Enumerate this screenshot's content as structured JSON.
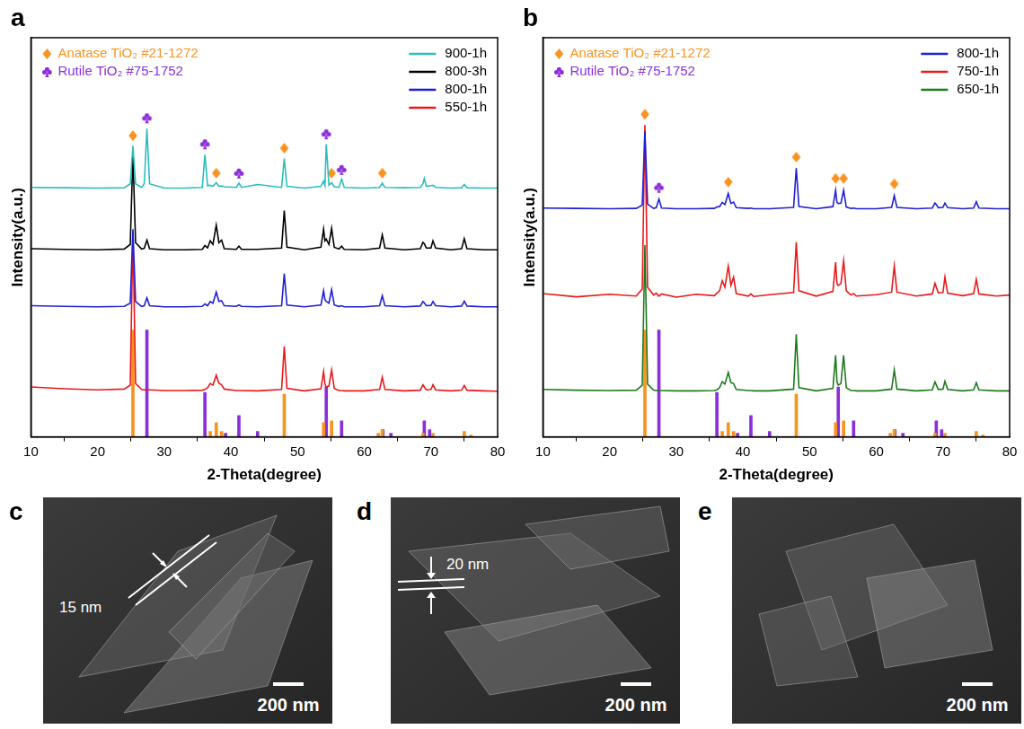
{
  "chart_data": [
    {
      "type": "line",
      "panel": "a",
      "xlabel": "2-Theta(degree)",
      "ylabel": "Intensity(a.u.)",
      "xlim": [
        10,
        80
      ],
      "xticks": [
        10,
        20,
        30,
        40,
        50,
        60,
        70,
        80
      ],
      "ylim": [
        0,
        112
      ],
      "tick_labels": "x",
      "grid": false,
      "legend": "top right",
      "x": [
        10,
        15,
        20,
        24,
        24.9,
        25.3,
        25.7,
        26.6,
        27,
        27.4,
        27.8,
        30,
        33,
        35.7,
        36.1,
        36.5,
        36.9,
        37.3,
        37.8,
        38.2,
        38.6,
        39,
        40.8,
        41.2,
        41.6,
        44,
        47.6,
        48,
        48.4,
        51,
        53.5,
        53.9,
        54.1,
        54.3,
        54.7,
        55.1,
        55.5,
        56.2,
        56.6,
        57,
        60,
        62.3,
        62.7,
        63.1,
        66,
        68.4,
        68.8,
        69,
        69.3,
        70,
        70.3,
        70.7,
        73,
        74.6,
        75,
        75.4,
        78,
        80
      ],
      "series": [
        {
          "name": "900-1h",
          "color": "#2cbcbc",
          "values": [
            70.0,
            69.9,
            69.8,
            69.9,
            71.0,
            81.7,
            71.0,
            70.0,
            71.0,
            86.5,
            71.0,
            69.8,
            69.8,
            70.0,
            79.2,
            70.5,
            70.6,
            70.3,
            71.3,
            70.3,
            70.4,
            70.2,
            70.0,
            71.2,
            70.0,
            70.8,
            70.0,
            78.1,
            70.3,
            69.8,
            70.3,
            71.8,
            70.5,
            82.1,
            70.6,
            71.3,
            70.2,
            70.0,
            72.3,
            70.0,
            69.8,
            70.0,
            71.2,
            70.0,
            69.9,
            70.0,
            71.0,
            72.5,
            70.3,
            70.5,
            70.6,
            70.0,
            69.8,
            69.9,
            70.8,
            69.9,
            69.8,
            69.8
          ]
        },
        {
          "name": "800-3h",
          "color": "#000000",
          "values": [
            52.8,
            52.6,
            52.5,
            52.7,
            54.0,
            79.2,
            54.5,
            52.7,
            52.9,
            55.2,
            52.8,
            52.5,
            52.5,
            52.6,
            53.7,
            53.0,
            55.0,
            54.0,
            59.4,
            54.5,
            55.2,
            52.8,
            52.6,
            53.5,
            52.6,
            52.6,
            53.0,
            63.5,
            53.2,
            52.5,
            53.2,
            58.3,
            55.0,
            55.5,
            54.0,
            58.5,
            53.2,
            52.7,
            53.5,
            52.6,
            52.5,
            53.0,
            56.7,
            53.0,
            52.5,
            52.8,
            54.6,
            54.2,
            53.0,
            53.0,
            55.0,
            53.0,
            52.5,
            52.8,
            55.6,
            52.8,
            52.5,
            52.5
          ]
        },
        {
          "name": "800-1h",
          "color": "#1f1fd6",
          "values": [
            36.8,
            36.6,
            36.5,
            36.6,
            37.5,
            58.3,
            38.0,
            36.6,
            36.8,
            39.0,
            36.8,
            36.5,
            36.5,
            36.6,
            37.3,
            36.8,
            38.0,
            37.5,
            40.6,
            38.0,
            38.2,
            36.8,
            36.6,
            37.0,
            36.6,
            36.5,
            36.8,
            45.8,
            37.0,
            36.5,
            37.0,
            41.0,
            38.5,
            38.0,
            37.5,
            41.3,
            37.0,
            36.6,
            36.8,
            36.5,
            36.5,
            36.8,
            39.6,
            36.8,
            36.5,
            36.7,
            38.0,
            37.6,
            36.8,
            36.9,
            38.0,
            36.8,
            36.5,
            36.7,
            38.1,
            36.7,
            36.5,
            36.5
          ]
        },
        {
          "name": "550-1h",
          "color": "#e8191c",
          "values": [
            14.0,
            13.5,
            13.2,
            13.4,
            14.5,
            57.3,
            15.0,
            13.3,
            13.2,
            13.2,
            13.2,
            13.0,
            13.0,
            13.1,
            13.3,
            13.8,
            15.0,
            14.5,
            17.3,
            15.0,
            14.6,
            13.4,
            13.0,
            13.0,
            13.0,
            12.9,
            13.3,
            25.4,
            13.6,
            12.9,
            13.5,
            18.3,
            14.8,
            14.0,
            14.3,
            18.8,
            13.6,
            13.0,
            13.0,
            12.9,
            12.9,
            13.3,
            16.7,
            13.3,
            12.9,
            13.1,
            14.6,
            14.0,
            13.2,
            13.3,
            14.6,
            13.2,
            12.9,
            13.1,
            14.4,
            13.1,
            12.9,
            12.8
          ]
        }
      ],
      "references": [
        {
          "name": "Anatase TiO₂ #21-1272",
          "color": "#f7931e",
          "type": "bar",
          "marker": "diamond",
          "legend": "top left",
          "x": [
            25.3,
            36.9,
            37.8,
            38.6,
            48,
            53.9,
            55.1,
            62.1,
            62.7,
            68.8,
            70.3,
            75,
            76
          ],
          "values": [
            30,
            1.5,
            4,
            1.5,
            12,
            4,
            4.5,
            1,
            2,
            1,
            1,
            1.5,
            0.5
          ],
          "peak_marks": {
            "x": [
              25.3,
              37.8,
              48,
              55.1,
              62.7
            ],
            "values": [
              84.5,
              74.0,
              81.0,
              74.0,
              74.0
            ]
          }
        },
        {
          "name": "Rutile TiO₂ #75-1752",
          "color": "#8b2fd9",
          "type": "bar",
          "marker": "club",
          "legend": "top left",
          "x": [
            27.4,
            36.1,
            39.2,
            41.2,
            44,
            54.3,
            56.6,
            62.8,
            64,
            69,
            69.8
          ],
          "values": [
            30,
            12.5,
            1,
            6,
            1.5,
            14,
            4.5,
            2,
            1,
            4.5,
            2
          ],
          "peak_marks": {
            "x": [
              27.4,
              36.1,
              41.2,
              54.3,
              56.6
            ],
            "values": [
              89.5,
              82.2,
              74.0,
              85.0,
              75.0
            ]
          }
        }
      ]
    },
    {
      "type": "line",
      "panel": "b",
      "xlabel": "2-Theta(degree)",
      "ylabel": "Intensity(a.u.)",
      "xlim": [
        10,
        80
      ],
      "xticks": [
        10,
        20,
        30,
        40,
        50,
        60,
        70,
        80
      ],
      "ylim": [
        0,
        112
      ],
      "tick_labels": "x",
      "grid": false,
      "legend": "top right",
      "x": [
        10,
        15,
        20,
        24,
        24.9,
        25.3,
        25.7,
        26.6,
        27,
        27.4,
        27.8,
        30,
        33,
        35.7,
        36.1,
        36.5,
        36.9,
        37.3,
        37.8,
        38.2,
        38.6,
        39,
        40.8,
        41.2,
        41.6,
        44,
        47.6,
        48,
        48.4,
        51,
        53.5,
        53.9,
        54.1,
        54.3,
        54.7,
        55.1,
        55.5,
        56.2,
        56.6,
        57,
        60,
        62.3,
        62.7,
        63.1,
        66,
        68.4,
        68.8,
        69,
        69.3,
        70,
        70.3,
        70.7,
        73,
        74.6,
        75,
        75.4,
        78,
        80
      ],
      "series": [
        {
          "name": "800-1h",
          "color": "#1f1fd6",
          "values": [
            64.2,
            64.1,
            64.0,
            64.1,
            65.0,
            85.8,
            65.3,
            64.1,
            64.3,
            66.7,
            64.2,
            64.0,
            64.0,
            64.1,
            64.5,
            64.6,
            65.8,
            65.2,
            68.3,
            65.5,
            65.9,
            64.3,
            64.1,
            64.2,
            64.0,
            64.0,
            64.4,
            75.4,
            64.6,
            64.0,
            64.6,
            69.2,
            65.8,
            65.5,
            65.6,
            69.2,
            64.5,
            64.1,
            64.2,
            64.0,
            64.0,
            64.4,
            67.7,
            64.4,
            64.0,
            64.2,
            65.6,
            65.2,
            64.3,
            64.4,
            65.6,
            64.3,
            64.0,
            64.2,
            66.0,
            64.2,
            64.0,
            64.0
          ]
        },
        {
          "name": "750-1h",
          "color": "#e8191c",
          "values": [
            40.2,
            39.3,
            40.0,
            39.5,
            41.5,
            87.5,
            42.0,
            39.8,
            40.3,
            39.5,
            40.1,
            39.2,
            40.0,
            39.6,
            40.3,
            41.0,
            43.8,
            42.0,
            47.9,
            42.5,
            44.8,
            40.2,
            39.5,
            40.1,
            39.4,
            39.9,
            40.5,
            54.6,
            41.0,
            39.5,
            40.8,
            49.0,
            43.0,
            42.5,
            43.0,
            49.4,
            41.0,
            39.8,
            40.2,
            39.5,
            39.9,
            40.6,
            47.9,
            40.6,
            39.5,
            40.1,
            43.1,
            42.0,
            40.4,
            40.5,
            44.8,
            40.3,
            39.6,
            40.2,
            44.2,
            40.1,
            39.5,
            39.8
          ]
        },
        {
          "name": "650-1h",
          "color": "#1e7a1e",
          "values": [
            13.3,
            13.1,
            13.0,
            13.1,
            14.5,
            53.8,
            14.8,
            13.1,
            13.0,
            13.0,
            13.0,
            12.9,
            12.9,
            13.0,
            13.2,
            13.8,
            15.5,
            14.8,
            18.1,
            15.2,
            15.0,
            13.3,
            13.0,
            13.0,
            12.9,
            12.9,
            13.4,
            28.8,
            13.8,
            12.9,
            13.6,
            22.9,
            15.5,
            14.5,
            15.0,
            22.9,
            13.8,
            13.0,
            13.0,
            12.9,
            12.9,
            13.4,
            18.8,
            13.4,
            12.9,
            13.2,
            15.4,
            14.6,
            13.3,
            13.4,
            15.6,
            13.3,
            12.9,
            13.2,
            15.2,
            13.2,
            12.9,
            12.9
          ]
        }
      ],
      "references": [
        {
          "name": "Anatase TiO₂ #21-1272",
          "color": "#f7931e",
          "type": "bar",
          "marker": "diamond",
          "legend": "top left",
          "x": [
            25.3,
            36.9,
            37.8,
            38.6,
            48,
            53.9,
            55.1,
            62.1,
            62.7,
            68.8,
            70.3,
            75,
            76
          ],
          "values": [
            30,
            1.5,
            4,
            1.5,
            12,
            4,
            4.5,
            1,
            2,
            1,
            1,
            1.5,
            0.5
          ],
          "peak_marks": {
            "x": [
              25.3,
              37.8,
              48,
              53.9,
              55.1,
              62.7
            ],
            "values": [
              90.5,
              71.5,
              78.5,
              72.5,
              72.5,
              71.0
            ]
          }
        },
        {
          "name": "Rutile TiO₂ #75-1752",
          "color": "#8b2fd9",
          "type": "bar",
          "marker": "club",
          "legend": "top left",
          "x": [
            27.4,
            36.1,
            39.2,
            41.2,
            44,
            54.3,
            56.6,
            62.8,
            64,
            69,
            69.8
          ],
          "values": [
            30,
            12.5,
            1,
            6,
            1.5,
            14,
            4.5,
            2,
            1,
            4.5,
            2
          ],
          "peak_marks": {
            "x": [
              27.4
            ],
            "values": [
              70.0
            ]
          }
        }
      ]
    }
  ],
  "images": [
    {
      "panel": "c",
      "scale_bar": "200 nm",
      "annotation": "15 nm"
    },
    {
      "panel": "d",
      "scale_bar": "200 nm",
      "annotation": "20 nm"
    },
    {
      "panel": "e",
      "scale_bar": "200 nm"
    }
  ]
}
